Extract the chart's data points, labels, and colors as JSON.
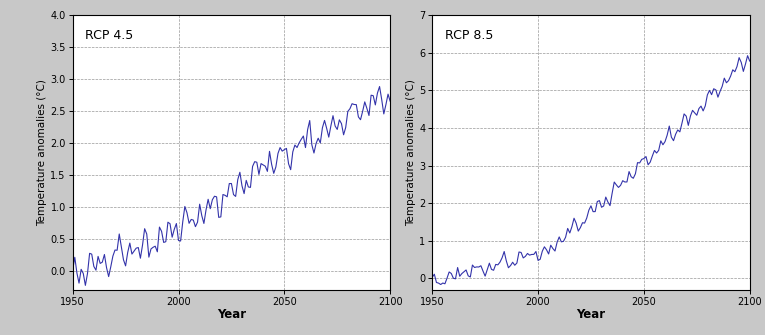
{
  "rcp45": {
    "label": "RCP 4.5",
    "ylim": [
      -0.3,
      4.0
    ],
    "yticks": [
      0.0,
      0.5,
      1.0,
      1.5,
      2.0,
      2.5,
      3.0,
      3.5,
      4.0
    ],
    "ylabel": "Temperature anomalies (°C)",
    "xlabel": "Year",
    "xticks": [
      1950,
      2000,
      2050,
      2100
    ],
    "xlim": [
      1950,
      2100
    ],
    "line_color": "#3333aa",
    "line_width": 0.8
  },
  "rcp85": {
    "label": "RCP 8.5",
    "ylim": [
      -0.3,
      7.0
    ],
    "yticks": [
      0.0,
      1.0,
      2.0,
      3.0,
      4.0,
      5.0,
      6.0,
      7.0
    ],
    "ylabel": "Temperature anomalies (°C)",
    "xlabel": "Year",
    "xticks": [
      1950,
      2000,
      2050,
      2100
    ],
    "xlim": [
      1950,
      2100
    ],
    "line_color": "#3333aa",
    "line_width": 0.8
  },
  "fig_bg": "#c8c8c8",
  "panel_bg": "#ffffff",
  "grid_color": "#999999",
  "grid_style": "--",
  "grid_lw": 0.5
}
